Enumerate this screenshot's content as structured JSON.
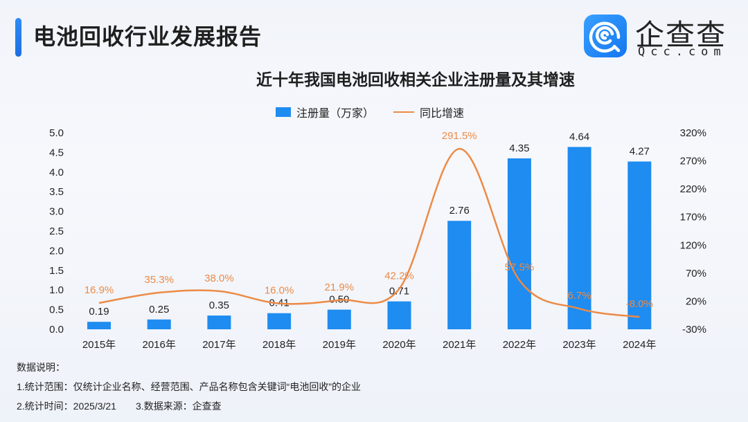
{
  "header": {
    "title": "电池回收行业发展报告",
    "logo_cn": "企查查",
    "logo_en": "Qcc.com"
  },
  "chart_data": {
    "type": "bar+line",
    "title": "近十年我国电池回收相关企业注册量及其增速",
    "categories": [
      "2015年",
      "2016年",
      "2017年",
      "2018年",
      "2019年",
      "2020年",
      "2021年",
      "2022年",
      "2023年",
      "2024年"
    ],
    "series": [
      {
        "name": "注册量（万家）",
        "type": "bar",
        "axis": "left",
        "color": "#1e8cf0",
        "values": [
          0.19,
          0.25,
          0.35,
          0.41,
          0.5,
          0.71,
          2.76,
          4.35,
          4.64,
          4.27
        ]
      },
      {
        "name": "同比增速",
        "type": "line",
        "axis": "right",
        "color": "#ec8a45",
        "values": [
          16.9,
          35.3,
          38.0,
          16.0,
          21.9,
          42.2,
          291.5,
          57.5,
          6.7,
          -8.0
        ],
        "labels": [
          "16.9%",
          "35.3%",
          "38.0%",
          "16.0%",
          "21.9%",
          "42.2%",
          "291.5%",
          "57.5%",
          "6.7%",
          "-8.0%"
        ]
      }
    ],
    "left_axis": {
      "ylim": [
        0,
        5.0
      ],
      "ticks": [
        "0.0",
        "0.5",
        "1.0",
        "1.5",
        "2.0",
        "2.5",
        "3.0",
        "3.5",
        "4.0",
        "4.5",
        "5.0"
      ]
    },
    "right_axis": {
      "ylim": [
        -30,
        320
      ],
      "ticks": [
        "-30%",
        "20%",
        "70%",
        "120%",
        "170%",
        "220%",
        "270%",
        "320%"
      ]
    },
    "legend": "top-center",
    "grid": false
  },
  "notes": {
    "heading": "数据说明：",
    "line1": "1.统计范围：仅统计企业名称、经营范围、产品名称包含关键词“电池回收”的企业",
    "line2a": "2.统计时间：2025/3/21",
    "line2b": "3.数据来源：企查查"
  }
}
